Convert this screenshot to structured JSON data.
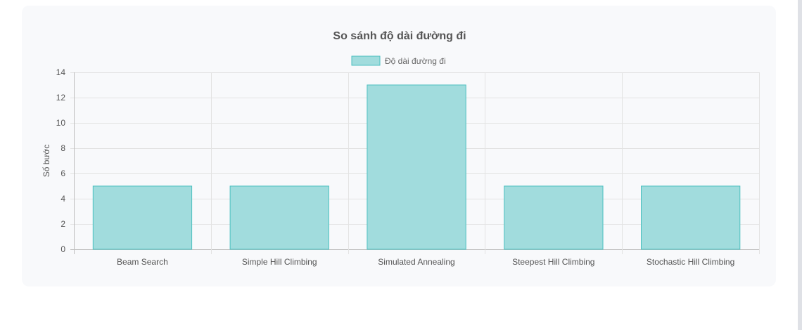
{
  "colors": {
    "bar_fill": "#a1dcdd",
    "bar_border": "#4bc0c0",
    "grid": "#e3e3e3",
    "card_background": "#f8f9fb"
  },
  "chart_data": {
    "type": "bar",
    "title": "So sánh độ dài đường đi",
    "xlabel": "",
    "ylabel": "Số bước",
    "categories": [
      "Beam Search",
      "Simple Hill Climbing",
      "Simulated Annealing",
      "Steepest Hill Climbing",
      "Stochastic Hill Climbing"
    ],
    "series": [
      {
        "name": "Độ dài đường đi",
        "values": [
          5,
          5,
          13,
          5,
          5
        ]
      }
    ],
    "ylim": [
      0,
      14
    ],
    "y_ticks": [
      "0",
      "2",
      "4",
      "6",
      "8",
      "10",
      "12",
      "14"
    ],
    "grid": true,
    "legend_position": "top-center"
  }
}
